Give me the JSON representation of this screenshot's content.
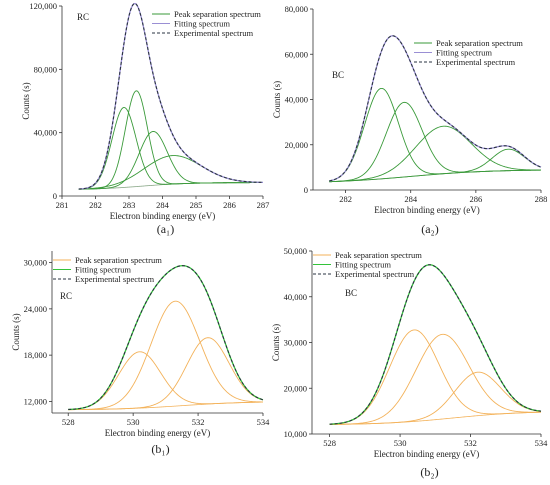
{
  "colors": {
    "peak_green": "#3a9a3a",
    "peak_orange": "#f3b25a",
    "fit_purple": "#9a8fd4",
    "fit_green": "#33c33a",
    "experimental": "#2a3340",
    "background_line": "#8aa888",
    "axis": "#333333"
  },
  "chart_data": [
    {
      "id": "a1",
      "type": "line",
      "panel_label": "(a₁)",
      "title": "RC",
      "xlabel": "Electron binding energy (eV)",
      "ylabel": "Counts (s)",
      "xlim": [
        281,
        287
      ],
      "ylim": [
        0,
        120000
      ],
      "xticks": [
        281,
        282,
        283,
        284,
        285,
        286,
        287
      ],
      "xtick_labels": [
        "281",
        "282",
        "283",
        "284",
        "285",
        "286",
        "287"
      ],
      "yticks": [
        0,
        40000,
        80000,
        120000
      ],
      "ytick_labels": [
        "0",
        "40,000",
        "80,000",
        "120,000"
      ],
      "legend": {
        "placement": "top-right",
        "entries": [
          "Peak separation spectrum",
          "Fitting spectrum",
          "Experimental spectrum"
        ]
      },
      "x_range": [
        281.5,
        287
      ],
      "background": {
        "start": 4000,
        "end": 8500,
        "center": 283.4,
        "width": 0.7
      },
      "peaks": [
        {
          "center": 282.85,
          "height": 50500,
          "sigma": 0.36
        },
        {
          "center": 283.22,
          "height": 60500,
          "sigma": 0.33
        },
        {
          "center": 283.72,
          "height": 34000,
          "sigma": 0.42
        },
        {
          "center": 284.3,
          "height": 18000,
          "sigma": 0.85
        }
      ]
    },
    {
      "id": "a2",
      "type": "line",
      "panel_label": "(a₂)",
      "title": "BC",
      "xlabel": "Electron binding energy (eV)",
      "ylabel": "Counts (s)",
      "xlim": [
        281,
        288
      ],
      "ylim": [
        0,
        80000
      ],
      "xticks": [
        282,
        284,
        286,
        288
      ],
      "xtick_labels": [
        "282",
        "284",
        "286",
        "288"
      ],
      "yticks": [
        0,
        20000,
        40000,
        60000,
        80000
      ],
      "ytick_labels": [
        "0",
        "20,000",
        "40,000",
        "60,000",
        "80,000"
      ],
      "legend": {
        "placement": "top-right",
        "entries": [
          "Peak separation spectrum",
          "Fitting spectrum",
          "Experimental spectrum"
        ]
      },
      "x_range": [
        281.5,
        288
      ],
      "background": {
        "start": 3000,
        "end": 9000,
        "center": 284,
        "width": 1.2
      },
      "peaks": [
        {
          "center": 283.1,
          "height": 40000,
          "sigma": 0.52
        },
        {
          "center": 283.8,
          "height": 33000,
          "sigma": 0.55
        },
        {
          "center": 285.0,
          "height": 21000,
          "sigma": 0.85
        },
        {
          "center": 287.0,
          "height": 9500,
          "sigma": 0.5
        }
      ]
    },
    {
      "id": "b1",
      "type": "line",
      "panel_label": "(b₁)",
      "title": "RC",
      "xlabel": "Electron binding energy (eV)",
      "ylabel": "Counts (s)",
      "xlim": [
        527.5,
        534
      ],
      "ylim": [
        10500,
        31500
      ],
      "xticks": [
        528,
        530,
        532,
        534
      ],
      "xtick_labels": [
        "528",
        "530",
        "532",
        "534"
      ],
      "yticks": [
        12000,
        18000,
        24000,
        30000
      ],
      "ytick_labels": [
        "12,000",
        "18,000",
        "24,000",
        "30,000"
      ],
      "legend": {
        "placement": "top-left",
        "entries": [
          "Peak separation spectrum",
          "Fitting spectrum",
          "Experimental spectrum"
        ]
      },
      "x_range": [
        528,
        534
      ],
      "background": {
        "start": 10900,
        "end": 12000,
        "center": 531.5,
        "width": 1.0
      },
      "peaks": [
        {
          "center": 530.2,
          "height": 7300,
          "sigma": 0.65
        },
        {
          "center": 531.3,
          "height": 13600,
          "sigma": 0.75
        },
        {
          "center": 532.3,
          "height": 8600,
          "sigma": 0.65
        }
      ]
    },
    {
      "id": "b2",
      "type": "line",
      "panel_label": "(b₂)",
      "title": "BC",
      "xlabel": "Electron binding energy (eV)",
      "ylabel": "Counts (s)",
      "xlim": [
        527.5,
        534
      ],
      "ylim": [
        10000,
        50000
      ],
      "xticks": [
        528,
        530,
        532,
        534
      ],
      "xtick_labels": [
        "528",
        "530",
        "532",
        "534"
      ],
      "yticks": [
        10000,
        20000,
        30000,
        40000,
        50000
      ],
      "ytick_labels": [
        "10,000",
        "20,000",
        "30,000",
        "40,000",
        "50,000"
      ],
      "legend": {
        "placement": "top-left",
        "entries": [
          "Peak separation spectrum",
          "Fitting spectrum",
          "Experimental spectrum"
        ]
      },
      "x_range": [
        528,
        534
      ],
      "background": {
        "start": 12000,
        "end": 15000,
        "center": 531.5,
        "width": 1.0
      },
      "peaks": [
        {
          "center": 530.4,
          "height": 20000,
          "sigma": 0.7
        },
        {
          "center": 531.2,
          "height": 18500,
          "sigma": 0.75
        },
        {
          "center": 532.2,
          "height": 9500,
          "sigma": 0.65
        }
      ]
    }
  ]
}
